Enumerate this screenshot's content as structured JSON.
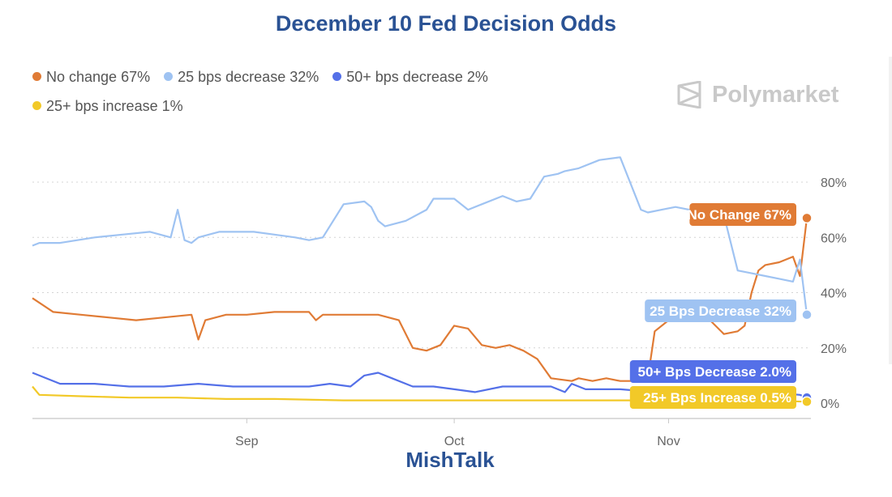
{
  "chart_data": {
    "type": "line",
    "title": "December 10 Fed Decision Odds",
    "brand": "Polymarket",
    "credit": "MishTalk",
    "x_ticks": [
      "Sep",
      "Oct",
      "Nov"
    ],
    "y_ticks": [
      "0%",
      "20%",
      "40%",
      "60%",
      "80%"
    ],
    "ylim": [
      0,
      100
    ],
    "grid": true,
    "legend_position": "top-left",
    "series": [
      {
        "legend": "No change 67%",
        "color": "#e07b35",
        "end_label": "No Change 67%",
        "end_value": 67,
        "x": [
          "Aug 1",
          "Aug 4",
          "Aug 8",
          "Aug 12",
          "Aug 16",
          "Aug 20",
          "Aug 24",
          "Aug 25",
          "Aug 26",
          "Aug 29",
          "Sep 1",
          "Sep 5",
          "Sep 10",
          "Sep 11",
          "Sep 12",
          "Sep 16",
          "Sep 20",
          "Sep 23",
          "Sep 25",
          "Sep 27",
          "Sep 29",
          "Oct 1",
          "Oct 3",
          "Oct 5",
          "Oct 7",
          "Oct 9",
          "Oct 11",
          "Oct 13",
          "Oct 15",
          "Oct 18",
          "Oct 19",
          "Oct 21",
          "Oct 23",
          "Oct 25",
          "Oct 27",
          "Oct 29",
          "Oct 30",
          "Nov 1",
          "Nov 3",
          "Nov 5",
          "Nov 7",
          "Nov 9",
          "Nov 11",
          "Nov 12",
          "Nov 13",
          "Nov 14",
          "Nov 15",
          "Nov 17",
          "Nov 19",
          "Nov 20",
          "Nov 21"
        ],
        "values": [
          38,
          33,
          32,
          31,
          30,
          31,
          32,
          23,
          30,
          32,
          32,
          33,
          33,
          30,
          32,
          32,
          32,
          30,
          20,
          19,
          21,
          28,
          27,
          21,
          20,
          21,
          19,
          16,
          9,
          8,
          9,
          8,
          9,
          8,
          8,
          9,
          26,
          30,
          31,
          30,
          30,
          25,
          26,
          28,
          40,
          48,
          50,
          51,
          53,
          46,
          67
        ]
      },
      {
        "legend": "25 bps decrease 32%",
        "color": "#9fc3f2",
        "end_label": "25 Bps Decrease 32%",
        "end_value": 32,
        "x": [
          "Aug 1",
          "Aug 2",
          "Aug 5",
          "Aug 10",
          "Aug 14",
          "Aug 18",
          "Aug 21",
          "Aug 22",
          "Aug 23",
          "Aug 24",
          "Aug 25",
          "Aug 28",
          "Sep 2",
          "Sep 5",
          "Sep 8",
          "Sep 10",
          "Sep 12",
          "Sep 15",
          "Sep 18",
          "Sep 19",
          "Sep 20",
          "Sep 21",
          "Sep 24",
          "Sep 27",
          "Sep 28",
          "Oct 1",
          "Oct 3",
          "Oct 5",
          "Oct 8",
          "Oct 10",
          "Oct 12",
          "Oct 14",
          "Oct 16",
          "Oct 17",
          "Oct 19",
          "Oct 22",
          "Oct 25",
          "Oct 28",
          "Oct 29",
          "Oct 31",
          "Nov 2",
          "Nov 4",
          "Nov 7",
          "Nov 9",
          "Nov 11",
          "Nov 13",
          "Nov 15",
          "Nov 17",
          "Nov 19",
          "Nov 20",
          "Nov 21"
        ],
        "values": [
          57,
          58,
          58,
          60,
          61,
          62,
          60,
          70,
          59,
          58,
          60,
          62,
          62,
          61,
          60,
          59,
          60,
          72,
          73,
          71,
          66,
          64,
          66,
          70,
          74,
          74,
          70,
          72,
          75,
          73,
          74,
          82,
          83,
          84,
          85,
          88,
          89,
          70,
          69,
          70,
          71,
          70,
          72,
          68,
          48,
          47,
          46,
          45,
          44,
          52,
          32
        ]
      },
      {
        "legend": "50+ bps decrease 2%",
        "color": "#5470e8",
        "end_label": "50+ Bps Decrease 2.0%",
        "end_value": 2,
        "x": [
          "Aug 1",
          "Aug 2",
          "Aug 5",
          "Aug 10",
          "Aug 15",
          "Aug 20",
          "Aug 25",
          "Aug 30",
          "Sep 5",
          "Sep 10",
          "Sep 13",
          "Sep 16",
          "Sep 18",
          "Sep 20",
          "Sep 22",
          "Sep 25",
          "Sep 28",
          "Oct 1",
          "Oct 4",
          "Oct 8",
          "Oct 12",
          "Oct 15",
          "Oct 17",
          "Oct 18",
          "Oct 20",
          "Oct 25",
          "Oct 30",
          "Nov 5",
          "Nov 10",
          "Nov 15",
          "Nov 20",
          "Nov 21"
        ],
        "values": [
          11,
          10,
          7,
          7,
          6,
          6,
          7,
          6,
          6,
          6,
          7,
          6,
          10,
          11,
          9,
          6,
          6,
          5,
          4,
          6,
          6,
          6,
          4,
          7,
          5,
          5,
          4,
          4,
          4,
          4,
          3,
          2
        ]
      },
      {
        "legend": "25+ bps increase 1%",
        "color": "#f2c928",
        "end_label": "25+ Bps Increase 0.5%",
        "end_value": 0.5,
        "x": [
          "Aug 1",
          "Aug 2",
          "Aug 8",
          "Aug 15",
          "Aug 22",
          "Aug 29",
          "Sep 5",
          "Sep 15",
          "Sep 25",
          "Oct 5",
          "Oct 15",
          "Oct 25",
          "Nov 5",
          "Nov 15",
          "Nov 21"
        ],
        "values": [
          6,
          3,
          2.5,
          2,
          2,
          1.5,
          1.5,
          1,
          1,
          1,
          1,
          1,
          1,
          1,
          0.5
        ]
      }
    ]
  }
}
